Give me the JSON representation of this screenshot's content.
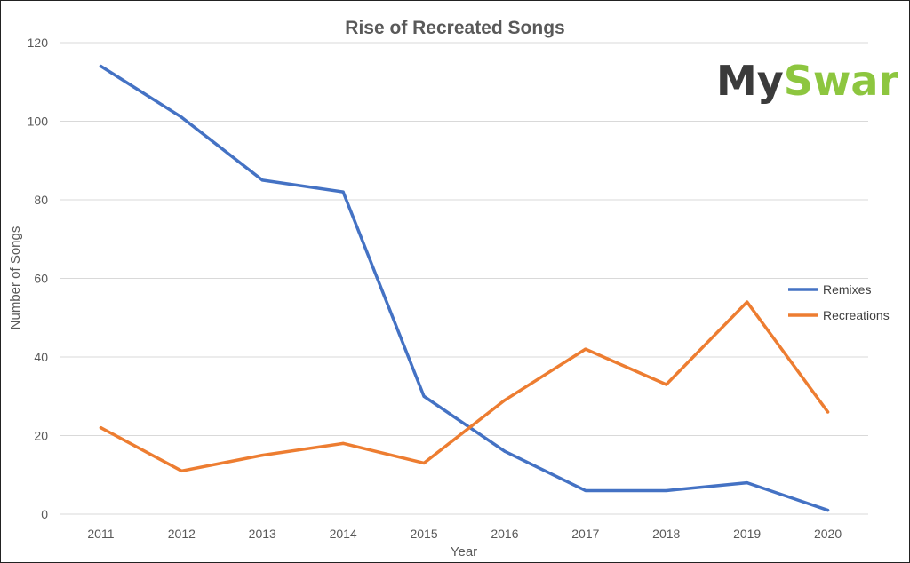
{
  "chart_data": {
    "type": "line",
    "title": "Rise of Recreated Songs",
    "xlabel": "Year",
    "ylabel": "Number of Songs",
    "categories": [
      "2011",
      "2012",
      "2013",
      "2014",
      "2015",
      "2016",
      "2017",
      "2018",
      "2019",
      "2020"
    ],
    "ylim": [
      0,
      120
    ],
    "yticks": [
      0,
      20,
      40,
      60,
      80,
      100,
      120
    ],
    "grid": true,
    "legend_position": "right",
    "series": [
      {
        "name": "Remixes",
        "color": "#4472C4",
        "values": [
          114,
          101,
          85,
          82,
          30,
          16,
          6,
          6,
          8,
          1
        ]
      },
      {
        "name": "Recreations",
        "color": "#ED7D31",
        "values": [
          22,
          11,
          15,
          18,
          13,
          29,
          42,
          33,
          54,
          26
        ]
      }
    ]
  },
  "logo": {
    "part1": "My",
    "part2": "Swar",
    "part1_color": "#3B3B3B",
    "part2_color": "#8DC63F"
  }
}
